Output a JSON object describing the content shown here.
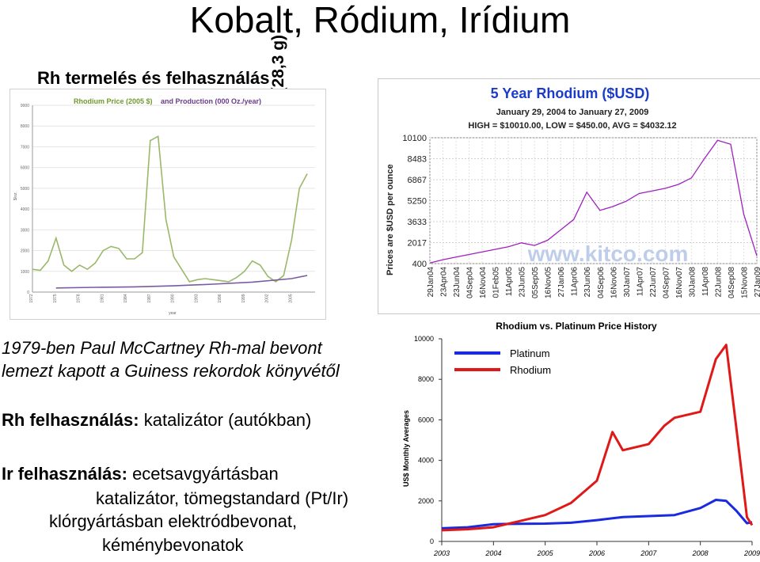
{
  "slide": {
    "title": "Kobalt, Ródium, Irídium",
    "subtitle": "Rh termelés és felhasználás",
    "axis_unit_label": "USD  / uncia (28,3 g)",
    "note_line1": "1979-ben Paul McCartney Rh-mal bevont",
    "note_line2": "lemezt kapott a Guiness rekordok könyvétől",
    "rh_use_label": "Rh felhasználás:",
    "rh_use_value": " katalizátor (autókban)",
    "ir_use_label": "Ir felhasználás:",
    "ir_use_value": " ecetsavgyártásban",
    "ir_line2": "katalizátor, tömegstandard (Pt/Ir)",
    "ir_line3": "klórgyártásban elektródbevonat,",
    "ir_line4": "kéménybevonatok"
  },
  "chart_data": [
    {
      "type": "line",
      "title_part1": "Rhodium Price (2005 $)",
      "title_part2": " and Production (000 Oz./year)",
      "ylabel": "$/oz.",
      "x_ticks": [
        "1972",
        "1975",
        "1978",
        "1981",
        "1984",
        "1987",
        "1990",
        "1993",
        "1996",
        "1999",
        "2002",
        "2005"
      ],
      "xlabel": "year",
      "y_ticks": [
        "0",
        "1000",
        "2000",
        "3000",
        "4000",
        "5000",
        "6000",
        "7000",
        "8000",
        "9000"
      ],
      "ylim": [
        0,
        9000
      ],
      "xlim": [
        1972,
        2008
      ],
      "series": [
        {
          "color": "#9ab86a",
          "x": [
            1972,
            1973,
            1974,
            1975,
            1976,
            1977,
            1978,
            1979,
            1980,
            1981,
            1982,
            1983,
            1984,
            1985,
            1986,
            1987,
            1988,
            1989,
            1990,
            1991,
            1992,
            1993,
            1994,
            1995,
            1996,
            1997,
            1998,
            1999,
            2000,
            2001,
            2002,
            2003,
            2004,
            2005,
            2006,
            2007
          ],
          "values": [
            1100,
            1050,
            1500,
            2600,
            1300,
            1000,
            1300,
            1100,
            1400,
            2000,
            2200,
            2100,
            1600,
            1600,
            1900,
            7300,
            7500,
            3500,
            1700,
            1100,
            500,
            600,
            650,
            600,
            550,
            500,
            700,
            1000,
            1500,
            1300,
            750,
            500,
            800,
            2500,
            5000,
            5700
          ]
        },
        {
          "color": "#7a5aa0",
          "x": [
            1975,
            1980,
            1985,
            1990,
            1995,
            2000,
            2005,
            2007
          ],
          "values": [
            200,
            230,
            250,
            300,
            380,
            480,
            650,
            800
          ]
        }
      ]
    },
    {
      "type": "line",
      "title": "5 Year Rhodium ($USD)",
      "subtitle": "January 29, 2004 to January 27, 2009",
      "stats": "HIGH = $10010.00, LOW = $450.00, AVG = $4032.12",
      "ylabel": "Prices are $USD per ounce",
      "y_ticks": [
        "400",
        "2017",
        "3633",
        "5250",
        "6867",
        "8483",
        "10100"
      ],
      "ylim": [
        400,
        10100
      ],
      "x_ticks": [
        "29Jan04",
        "23Apr04",
        "23Jun04",
        "04Sep04",
        "16Nov04",
        "01Feb05",
        "11Apr05",
        "23Jun05",
        "05Sep05",
        "16Nov05",
        "27Jan06",
        "11Apr06",
        "23Jun06",
        "04Sep06",
        "16Nov06",
        "30Jan07",
        "11Apr07",
        "22Jun07",
        "04Sep07",
        "16Nov07",
        "30Jan08",
        "11Apr08",
        "22Jun08",
        "04Sep08",
        "15Nov08",
        "27Jan09"
      ],
      "watermark": "www.kitco.com",
      "series": [
        {
          "color": "#a020c0",
          "x": [
            0,
            1,
            2,
            3,
            4,
            5,
            6,
            7,
            8,
            9,
            10,
            11,
            12,
            13,
            14,
            15,
            16,
            17,
            18,
            19,
            20,
            21,
            22,
            23,
            24,
            25
          ],
          "values": [
            450,
            700,
            900,
            1100,
            1300,
            1500,
            1700,
            2000,
            1800,
            2200,
            3000,
            3800,
            5900,
            4500,
            4800,
            5200,
            5800,
            6000,
            6200,
            6500,
            7000,
            8500,
            9900,
            9600,
            4200,
            1000
          ]
        }
      ]
    },
    {
      "type": "line",
      "title": "Rhodium vs. Platinum Price History",
      "ylabel": "US$ Monthly Averages",
      "y_ticks": [
        "0",
        "2000",
        "4000",
        "6000",
        "8000",
        "10000"
      ],
      "ylim": [
        0,
        10000
      ],
      "x_ticks": [
        "2003",
        "2004",
        "2005",
        "2006",
        "2007",
        "2008",
        "2009"
      ],
      "xlim": [
        2003,
        2009
      ],
      "legend": [
        "Platinum",
        "Rhodium"
      ],
      "legend_position": "top-left",
      "series": [
        {
          "name": "Platinum",
          "color": "#1a2ae0",
          "x": [
            2003,
            2003.5,
            2004,
            2004.5,
            2005,
            2005.5,
            2006,
            2006.5,
            2007,
            2007.5,
            2008,
            2008.3,
            2008.5,
            2008.7,
            2008.9,
            2009
          ],
          "values": [
            650,
            700,
            850,
            870,
            880,
            920,
            1050,
            1200,
            1250,
            1300,
            1650,
            2050,
            2000,
            1500,
            900,
            950
          ]
        },
        {
          "name": "Rhodium",
          "color": "#e01818",
          "x": [
            2003,
            2003.5,
            2004,
            2004.5,
            2005,
            2005.5,
            2006,
            2006.3,
            2006.5,
            2007,
            2007.3,
            2007.5,
            2008,
            2008.3,
            2008.5,
            2008.7,
            2008.9,
            2009
          ],
          "values": [
            550,
            600,
            700,
            1000,
            1300,
            1900,
            3000,
            5400,
            4500,
            4800,
            5700,
            6100,
            6400,
            9000,
            9700,
            5500,
            1200,
            800
          ]
        }
      ]
    }
  ]
}
